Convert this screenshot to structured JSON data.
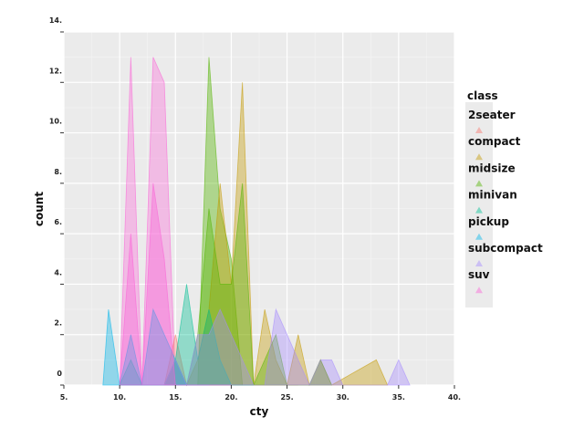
{
  "chart_data": {
    "type": "area",
    "xlabel": "cty",
    "ylabel": "count",
    "xlim": [
      5,
      40
    ],
    "ylim": [
      0,
      14
    ],
    "x_ticks": [
      5,
      10,
      15,
      20,
      25,
      30,
      35,
      40
    ],
    "y_ticks": [
      0,
      2,
      4,
      6,
      8,
      10,
      12,
      14
    ],
    "x_tick_labels": [
      "5.",
      "10.",
      "15.",
      "20.",
      "25.",
      "30.",
      "35.",
      "40."
    ],
    "y_tick_labels": [
      "0",
      "2.",
      "4.",
      "6.",
      "8.",
      "10.",
      "12.",
      "14."
    ],
    "grid": true,
    "legend_position": "right",
    "legend_title": "class",
    "series": [
      {
        "name": "2seater",
        "color": "#F8766D",
        "points": [
          [
            14,
            0
          ],
          [
            15,
            2
          ],
          [
            16,
            0
          ],
          [
            17,
            0
          ],
          [
            18,
            0
          ],
          [
            19,
            0
          ],
          [
            20,
            0
          ],
          [
            21,
            0
          ],
          [
            22,
            0
          ],
          [
            23,
            0
          ],
          [
            24,
            0
          ],
          [
            25,
            0
          ],
          [
            26,
            0
          ]
        ]
      },
      {
        "name": "compact",
        "color": "#C49A00",
        "points": [
          [
            14,
            0
          ],
          [
            15,
            1
          ],
          [
            16,
            0
          ],
          [
            17,
            1
          ],
          [
            18,
            3
          ],
          [
            19,
            8
          ],
          [
            20,
            4
          ],
          [
            21,
            12
          ],
          [
            22,
            0
          ],
          [
            23,
            3
          ],
          [
            24,
            1
          ],
          [
            25,
            0
          ],
          [
            26,
            2
          ],
          [
            27,
            0
          ],
          [
            28,
            1
          ],
          [
            29,
            0
          ],
          [
            33,
            1
          ],
          [
            34,
            0
          ]
        ]
      },
      {
        "name": "midsize",
        "color": "#53B400",
        "points": [
          [
            14,
            0
          ],
          [
            15,
            1
          ],
          [
            16,
            0
          ],
          [
            17,
            2
          ],
          [
            18,
            7
          ],
          [
            19,
            4
          ],
          [
            20,
            4
          ],
          [
            21,
            8
          ],
          [
            22,
            0
          ],
          [
            23,
            1
          ],
          [
            24,
            2
          ],
          [
            25,
            0
          ],
          [
            26,
            0
          ],
          [
            27,
            0
          ],
          [
            28,
            1
          ],
          [
            29,
            0
          ]
        ]
      },
      {
        "name": "minivan",
        "color": "#00C094",
        "points": [
          [
            10,
            0
          ],
          [
            11,
            1
          ],
          [
            12,
            0
          ],
          [
            13,
            0
          ],
          [
            14,
            0
          ],
          [
            15,
            1
          ],
          [
            16,
            4
          ],
          [
            17,
            1
          ],
          [
            18,
            3
          ],
          [
            19,
            1
          ],
          [
            20,
            0
          ],
          [
            21,
            0
          ],
          [
            22,
            0
          ]
        ]
      },
      {
        "name": "pickup",
        "color": "#00B6EB",
        "points": [
          [
            8.5,
            0
          ],
          [
            9,
            3
          ],
          [
            10,
            0
          ],
          [
            11,
            2
          ],
          [
            12,
            0
          ],
          [
            13,
            3
          ],
          [
            14,
            2
          ],
          [
            15,
            1
          ],
          [
            16,
            0
          ],
          [
            17,
            0
          ],
          [
            18,
            0
          ]
        ]
      },
      {
        "name": "subcompact",
        "color": "#A58AFF",
        "points": [
          [
            14,
            0
          ],
          [
            15,
            1
          ],
          [
            16,
            0
          ],
          [
            17,
            2
          ],
          [
            18,
            2
          ],
          [
            19,
            3
          ],
          [
            20,
            2
          ],
          [
            21,
            1
          ],
          [
            22,
            0
          ],
          [
            23,
            0
          ],
          [
            24,
            3
          ],
          [
            25,
            2
          ],
          [
            26,
            1
          ],
          [
            27,
            0
          ],
          [
            28,
            1
          ],
          [
            29,
            1
          ],
          [
            30,
            0
          ],
          [
            34,
            0
          ],
          [
            35,
            1
          ],
          [
            36,
            0
          ]
        ]
      },
      {
        "name": "suv",
        "color": "#FB61D7",
        "points": [
          [
            10,
            0
          ],
          [
            11,
            6
          ],
          [
            12,
            0
          ],
          [
            13,
            8
          ],
          [
            14,
            5
          ],
          [
            15,
            0
          ],
          [
            16,
            0
          ],
          [
            17,
            0
          ],
          [
            18,
            0
          ],
          [
            19,
            0
          ],
          [
            20,
            0
          ]
        ]
      }
    ],
    "series_pink_overlay": [
      [
        10,
        0
      ],
      [
        11,
        13
      ],
      [
        12,
        0
      ],
      [
        13,
        13
      ],
      [
        14,
        12
      ],
      [
        15,
        0
      ]
    ],
    "series_green_overlay": [
      [
        16,
        0
      ],
      [
        17,
        0
      ],
      [
        18,
        13
      ],
      [
        19,
        7
      ],
      [
        20,
        5
      ],
      [
        21,
        0
      ]
    ]
  }
}
